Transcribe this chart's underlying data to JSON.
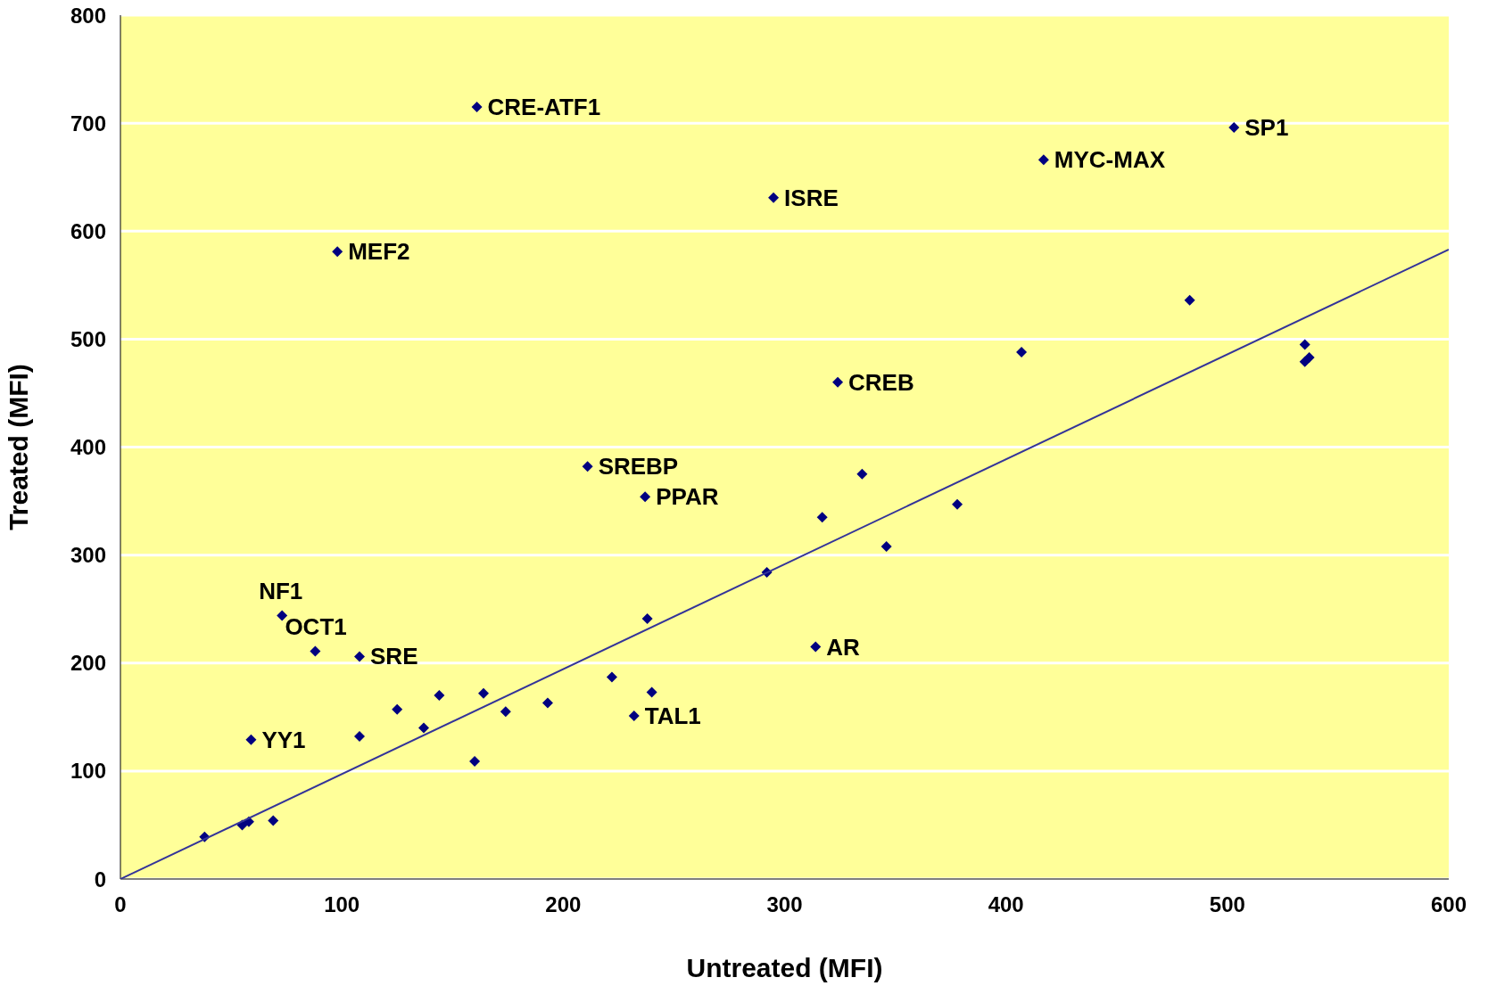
{
  "chart_data": {
    "type": "scatter",
    "xlabel": "Untreated (MFI)",
    "ylabel": "Treated (MFI)",
    "xlim": [
      0,
      600
    ],
    "xticks": [
      0,
      100,
      200,
      300,
      400,
      500,
      600
    ],
    "ylim": [
      0,
      800
    ],
    "yticks": [
      0,
      100,
      200,
      300,
      400,
      500,
      600,
      700,
      800
    ],
    "grid": "y",
    "series": [
      {
        "marker": "diamond",
        "color": "#000080",
        "x": [
          38,
          55,
          58,
          69,
          59,
          73,
          88,
          108,
          108,
          125,
          137,
          144,
          160,
          164,
          174,
          193,
          98,
          161,
          211,
          237,
          238,
          222,
          232,
          240,
          292,
          295,
          314,
          317,
          324,
          335,
          346,
          378,
          407,
          417,
          483,
          503,
          535,
          535,
          537
        ],
        "values": [
          39,
          50,
          53,
          54,
          129,
          244,
          211,
          206,
          132,
          157,
          140,
          170,
          109,
          172,
          155,
          163,
          581,
          715,
          382,
          354,
          241,
          187,
          151,
          173,
          284,
          631,
          215,
          335,
          460,
          375,
          308,
          347,
          488,
          666,
          536,
          696,
          495,
          479,
          483
        ]
      },
      {
        "type": "line",
        "marker": "none",
        "color": "#333399",
        "x": [
          0,
          600
        ],
        "values": [
          0,
          583
        ]
      }
    ],
    "annotations": [
      {
        "text": "YY1",
        "x": 59,
        "y": 129
      },
      {
        "text": "NF1",
        "x": 73,
        "y": 244
      },
      {
        "text": "OCT1",
        "x": 88,
        "y": 211
      },
      {
        "text": "SRE",
        "x": 108,
        "y": 206
      },
      {
        "text": "MEF2",
        "x": 98,
        "y": 581
      },
      {
        "text": "CRE-ATF1",
        "x": 161,
        "y": 715
      },
      {
        "text": "SREBP",
        "x": 211,
        "y": 382
      },
      {
        "text": "PPAR",
        "x": 237,
        "y": 354
      },
      {
        "text": "TAL1",
        "x": 232,
        "y": 151
      },
      {
        "text": "ISRE",
        "x": 295,
        "y": 631
      },
      {
        "text": "AR",
        "x": 314,
        "y": 215
      },
      {
        "text": "CREB",
        "x": 324,
        "y": 460
      },
      {
        "text": "MYC-MAX",
        "x": 417,
        "y": 666
      },
      {
        "text": "SP1",
        "x": 503,
        "y": 696
      }
    ]
  }
}
